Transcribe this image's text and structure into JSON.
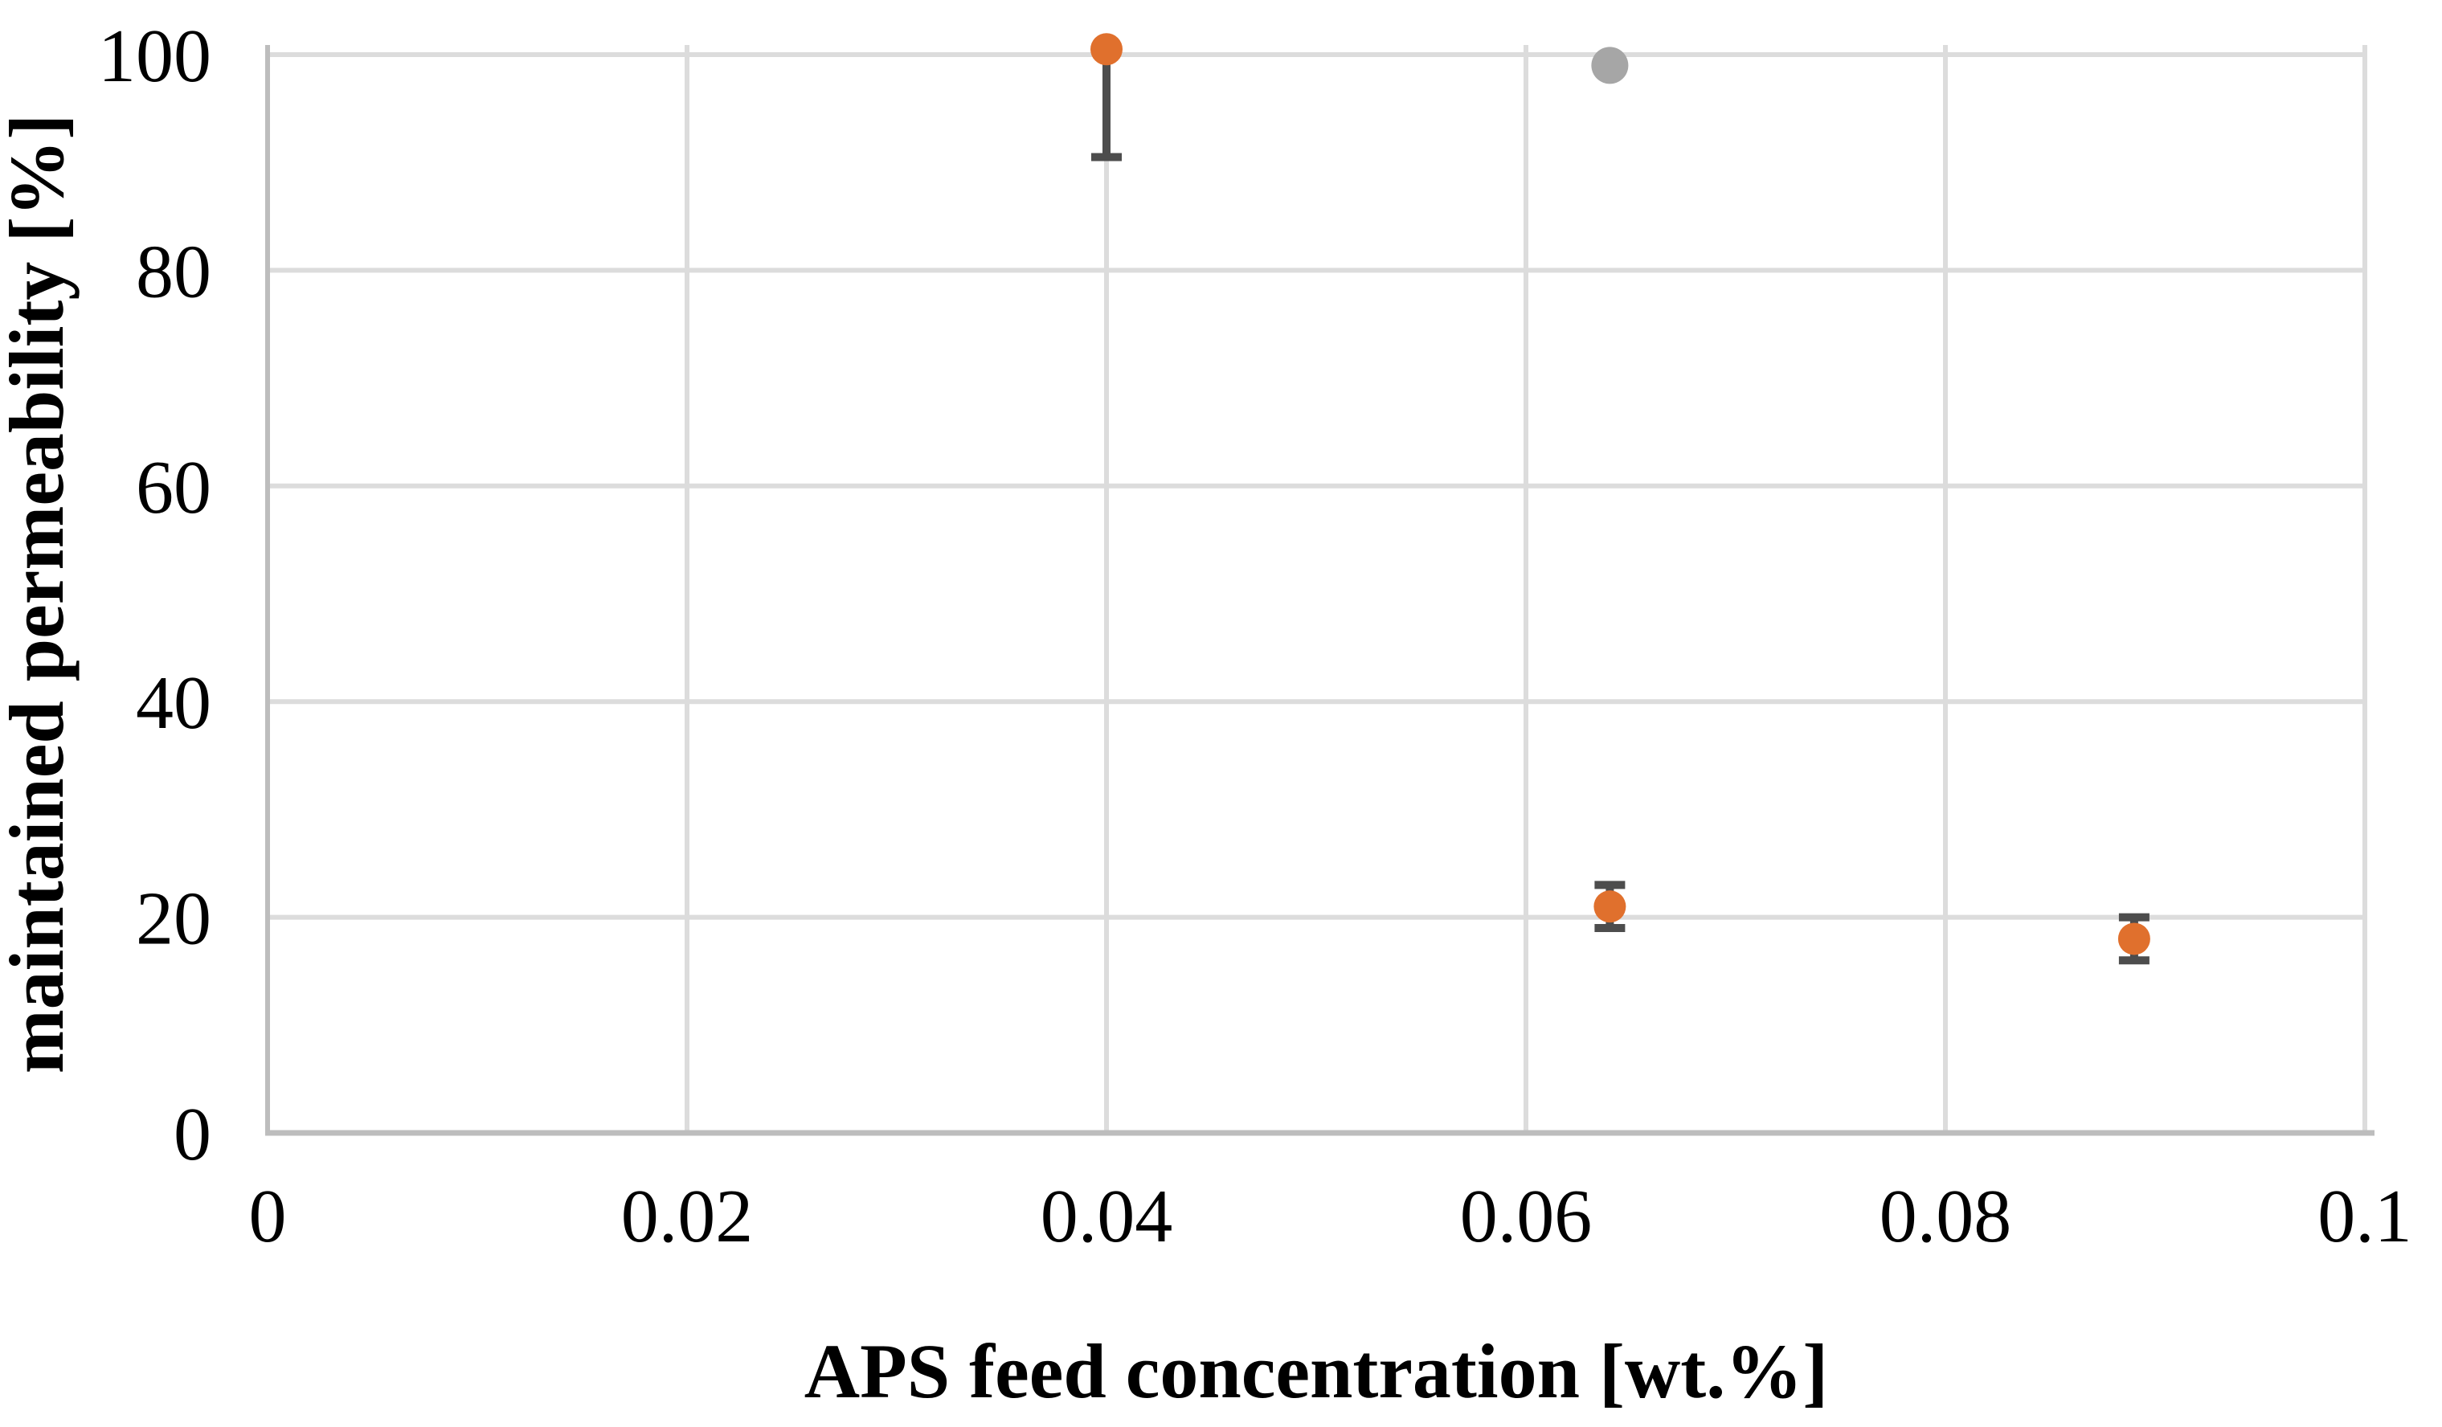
{
  "chart_data": {
    "type": "scatter",
    "title": "",
    "xlabel": "APS feed concentration [wt.%]",
    "ylabel": "maintained permeability [%]",
    "xlim": [
      0,
      0.1
    ],
    "ylim": [
      0,
      100
    ],
    "grid": true,
    "legend": "none",
    "xticks": [
      {
        "value": 0,
        "label": "0"
      },
      {
        "value": 0.02,
        "label": "0.02"
      },
      {
        "value": 0.04,
        "label": "0.04"
      },
      {
        "value": 0.06,
        "label": "0.06"
      },
      {
        "value": 0.08,
        "label": "0.08"
      },
      {
        "value": 0.1,
        "label": "0.1"
      }
    ],
    "yticks": [
      {
        "value": 0,
        "label": "0"
      },
      {
        "value": 20,
        "label": "20"
      },
      {
        "value": 40,
        "label": "40"
      },
      {
        "value": 60,
        "label": "60"
      },
      {
        "value": 80,
        "label": "80"
      },
      {
        "value": 100,
        "label": "100"
      }
    ],
    "series": [
      {
        "name": "orange-series",
        "marker_color": "#E0702D",
        "error_bar_color": "#4D4D4D",
        "points": [
          {
            "x": 0.04,
            "y": 100.5,
            "err_minus": 10,
            "err_plus": 10
          },
          {
            "x": 0.064,
            "y": 21,
            "err_minus": 2,
            "err_plus": 2
          },
          {
            "x": 0.089,
            "y": 18,
            "err_minus": 2,
            "err_plus": 2
          }
        ]
      },
      {
        "name": "gray-series",
        "marker_color": "#A6A6A6",
        "error_bar_color": "#4D4D4D",
        "points": [
          {
            "x": 0.064,
            "y": 99,
            "err_minus": 0,
            "err_plus": 0
          }
        ]
      }
    ],
    "colors": {
      "background": "#FFFFFF",
      "gridline": "#DCDCDC",
      "axis_line": "#BDBDBD",
      "text": "#000000"
    }
  }
}
